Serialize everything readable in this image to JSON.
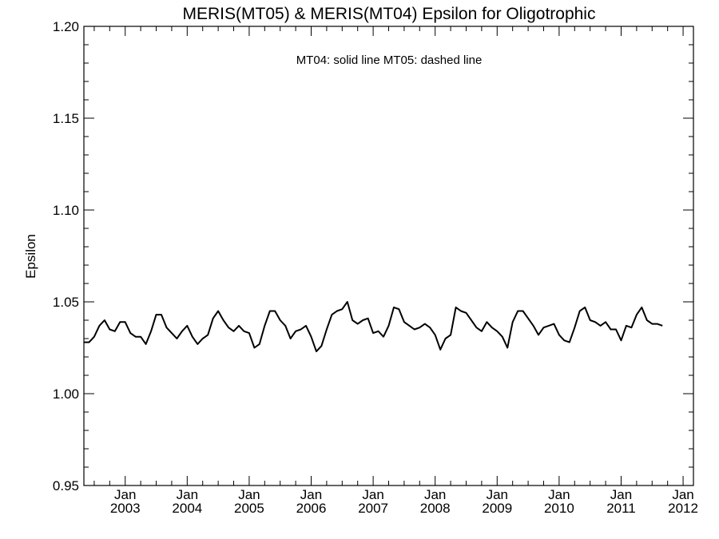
{
  "chart_data": {
    "type": "line",
    "title": "MERIS(MT05) & MERIS(MT04)  Epsilon for Oligotrophic",
    "ylabel": "Epsilon",
    "xlabel": "",
    "annotation": "MT04: solid line   MT05: dashed line",
    "ylim": [
      0.95,
      1.2
    ],
    "y_ticks": [
      "0.95",
      "1.00",
      "1.05",
      "1.10",
      "1.15",
      "1.20"
    ],
    "xlim": [
      "2002-05",
      "2012-03"
    ],
    "x_ticks": [
      {
        "month": "Jan",
        "year": "2003",
        "date": "2003-01"
      },
      {
        "month": "Jan",
        "year": "2004",
        "date": "2004-01"
      },
      {
        "month": "Jan",
        "year": "2005",
        "date": "2005-01"
      },
      {
        "month": "Jan",
        "year": "2006",
        "date": "2006-01"
      },
      {
        "month": "Jan",
        "year": "2007",
        "date": "2007-01"
      },
      {
        "month": "Jan",
        "year": "2008",
        "date": "2008-01"
      },
      {
        "month": "Jan",
        "year": "2009",
        "date": "2009-01"
      },
      {
        "month": "Jan",
        "year": "2010",
        "date": "2010-01"
      },
      {
        "month": "Jan",
        "year": "2011",
        "date": "2011-01"
      },
      {
        "month": "Jan",
        "year": "2012",
        "date": "2012-01"
      }
    ],
    "grid": false,
    "line_color": "#000000",
    "series": [
      {
        "style": "solid",
        "start_date": "2002-05",
        "step": "monthly",
        "values": [
          1.028,
          1.028,
          1.031,
          1.037,
          1.04,
          1.035,
          1.034,
          1.039,
          1.039,
          1.033,
          1.031,
          1.031,
          1.027,
          1.034,
          1.043,
          1.043,
          1.036,
          1.033,
          1.03,
          1.034,
          1.037,
          1.031,
          1.027,
          1.03,
          1.032,
          1.041,
          1.045,
          1.04,
          1.036,
          1.034,
          1.037,
          1.034,
          1.033,
          1.025,
          1.027,
          1.037,
          1.045,
          1.045,
          1.04,
          1.037,
          1.03,
          1.034,
          1.035,
          1.037,
          1.031,
          1.023,
          1.026,
          1.035,
          1.043,
          1.045,
          1.046,
          1.05,
          1.04,
          1.038,
          1.04,
          1.041,
          1.033,
          1.034,
          1.031,
          1.037,
          1.047,
          1.046,
          1.039,
          1.037,
          1.035,
          1.036,
          1.038,
          1.036,
          1.032,
          1.024,
          1.03,
          1.032,
          1.047,
          1.045,
          1.044,
          1.04,
          1.036,
          1.034,
          1.039,
          1.036,
          1.034,
          1.031,
          1.025,
          1.039,
          1.045,
          1.045,
          1.041,
          1.037,
          1.032,
          1.036,
          1.037,
          1.038,
          1.032,
          1.029,
          1.028,
          1.036,
          1.045,
          1.047,
          1.04,
          1.039,
          1.037,
          1.039,
          1.035,
          1.035,
          1.029,
          1.037,
          1.036,
          1.043,
          1.047,
          1.04,
          1.038,
          1.038,
          1.037
        ]
      }
    ]
  }
}
